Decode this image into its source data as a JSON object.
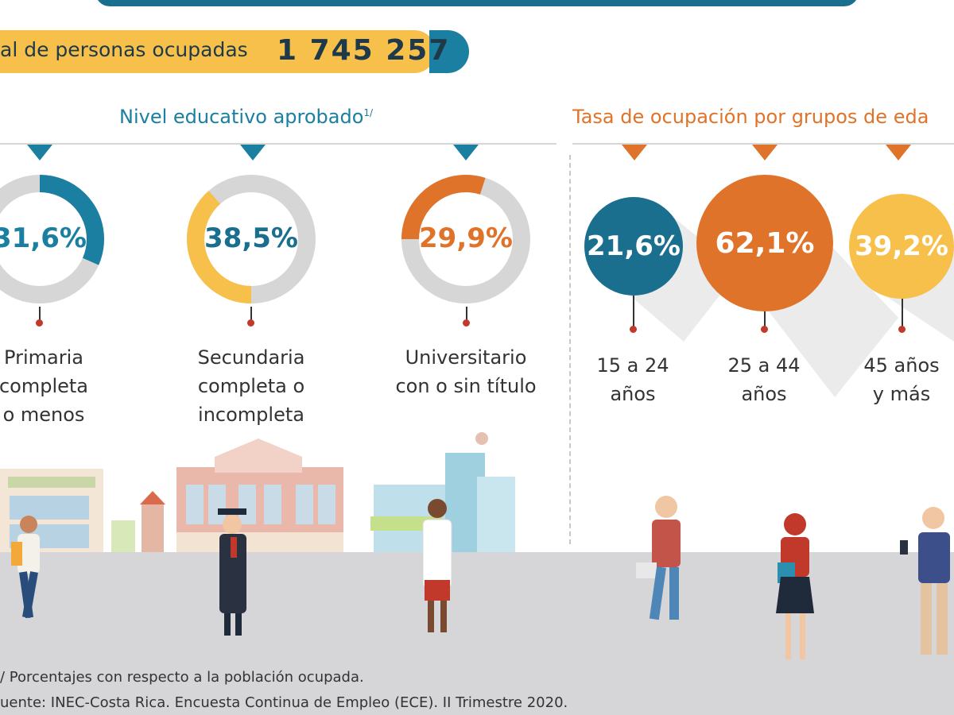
{
  "total": {
    "label": "al de personas ocupadas",
    "value": "1 745 257"
  },
  "education": {
    "title": "Nivel educativo aprobado",
    "title_sup": "1/",
    "items": [
      {
        "pct": "31,6%",
        "value": 31.6,
        "color": "#1a7fa0",
        "lines": [
          "Primaria",
          "completa",
          "o menos"
        ]
      },
      {
        "pct": "38,5%",
        "value": 38.5,
        "color": "#f6c04a",
        "lines": [
          "Secundaria",
          "completa o",
          "incompleta"
        ]
      },
      {
        "pct": "29,9%",
        "value": 29.9,
        "color": "#e0732a",
        "lines": [
          "Universitario",
          "con o sin título"
        ]
      }
    ]
  },
  "age": {
    "title": "Tasa de ocupación por grupos de eda",
    "items": [
      {
        "pct": "21,6%",
        "color": "#1a6f8e",
        "lines": [
          "15 a 24",
          "años"
        ]
      },
      {
        "pct": "62,1%",
        "color": "#e0732a",
        "lines": [
          "25 a 44",
          "años"
        ]
      },
      {
        "pct": "39,2%",
        "color": "#f6c04a",
        "lines": [
          "45 años",
          "y más"
        ]
      }
    ]
  },
  "footnotes": {
    "note1": "/ Porcentajes con respecto a la población ocupada.",
    "source": "uente: INEC-Costa Rica. Encuesta Continua de Empleo (ECE). II Trimestre 2020."
  },
  "colors": {
    "teal": "#1a7fa0",
    "orange": "#e0732a",
    "yellow": "#f6c04a",
    "track": "#d6d6d6"
  }
}
